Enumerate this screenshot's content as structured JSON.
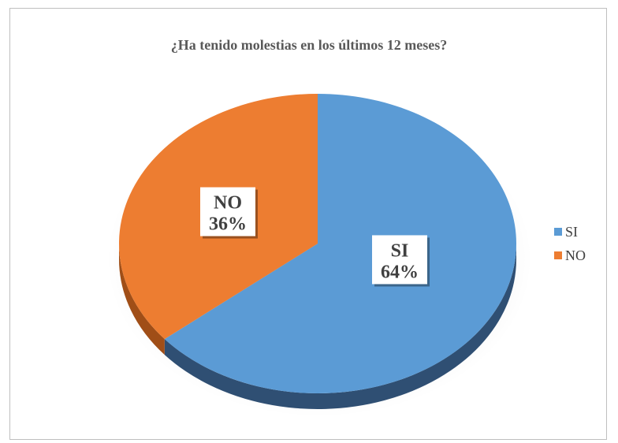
{
  "chart_data": {
    "type": "pie",
    "title": "¿Ha tenido molestias en los últimos 12 meses?",
    "slices": [
      {
        "label": "SI",
        "value": 64,
        "display": "64%",
        "color": "#5B9BD5",
        "side_color": "#2F4F73"
      },
      {
        "label": "NO",
        "value": 36,
        "display": "36%",
        "color": "#ED7D31",
        "side_color": "#A04E17"
      }
    ],
    "legend": [
      {
        "label": "SI",
        "color": "#5B9BD5"
      },
      {
        "label": "NO",
        "color": "#ED7D31"
      }
    ],
    "legend_position": "right"
  }
}
